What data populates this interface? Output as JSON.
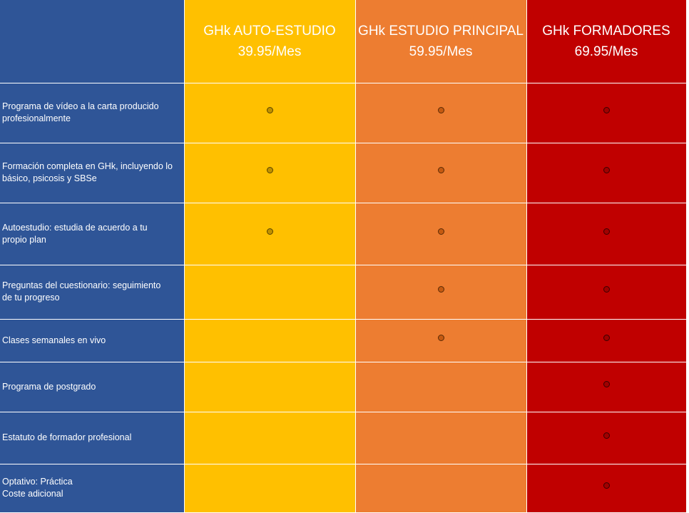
{
  "colors": {
    "feature_column": "#2f5597",
    "plan_auto_estudio": "#ffc000",
    "plan_estudio_principal": "#ed7d31",
    "plan_formadores": "#c00000",
    "text": "#ffffff"
  },
  "plans": [
    {
      "name": "GHk AUTO-ESTUDIO",
      "price": "39.95/Mes"
    },
    {
      "name": "GHk ESTUDIO PRINCIPAL",
      "price": "59.95/Mes"
    },
    {
      "name": "GHk FORMADORES",
      "price": "69.95/Mes"
    }
  ],
  "features": [
    {
      "lines": [
        "Programa de vídeo a la carta producido",
        "profesionalmente"
      ],
      "included": [
        true,
        true,
        true
      ]
    },
    {
      "lines": [
        "Formación completa en GHk, incluyendo lo",
        "básico, psicosis y SBSe"
      ],
      "included": [
        true,
        true,
        true
      ]
    },
    {
      "lines": [
        "Autoestudio: estudia de acuerdo a tu",
        "propio plan"
      ],
      "included": [
        true,
        true,
        true
      ]
    },
    {
      "lines": [
        "Preguntas del cuestionario: seguimiento",
        "de tu progreso"
      ],
      "included": [
        false,
        true,
        true
      ]
    },
    {
      "lines": [
        "Clases semanales en vivo"
      ],
      "included": [
        false,
        true,
        true
      ]
    },
    {
      "lines": [
        "Programa de postgrado"
      ],
      "included": [
        false,
        false,
        true
      ]
    },
    {
      "lines": [
        "Estatuto de formador profesional"
      ],
      "included": [
        false,
        false,
        true
      ]
    },
    {
      "lines": [
        "Optativo: Práctica",
        "Coste adicional"
      ],
      "included": [
        false,
        false,
        true
      ]
    }
  ],
  "indicator_icon": "circle-dot-icon"
}
